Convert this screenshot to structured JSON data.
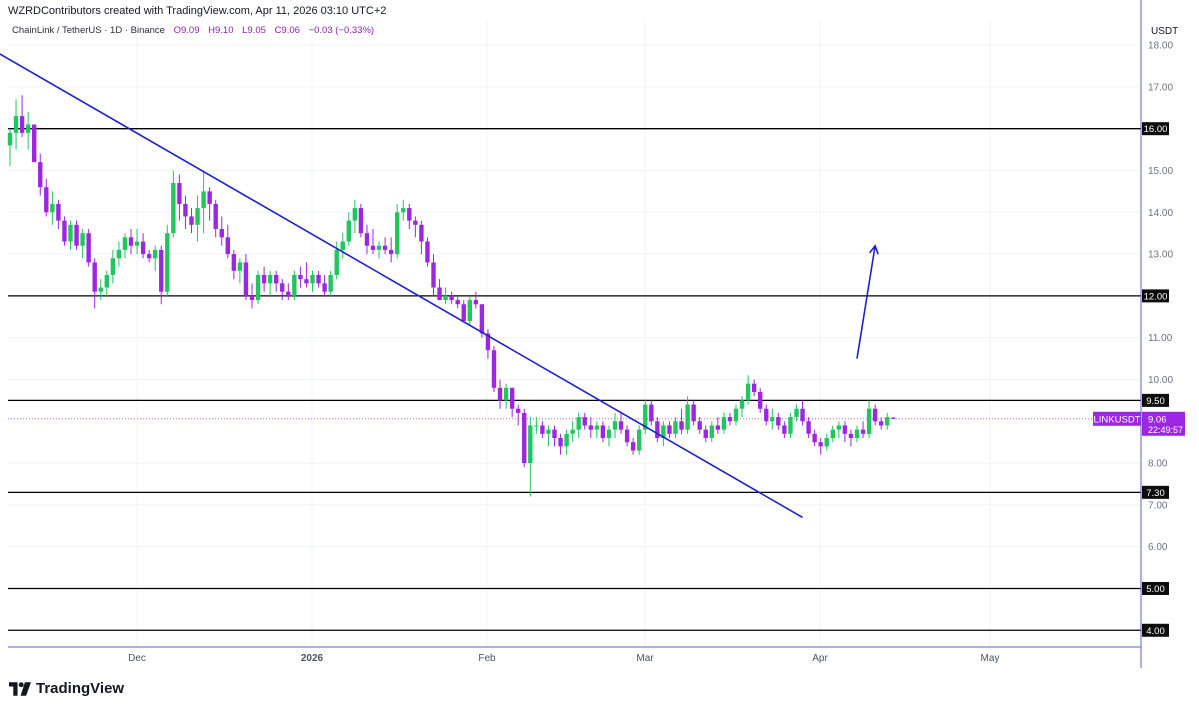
{
  "header": {
    "created_by": "WZRDContributors created with TradingView.com, Apr 11, 2026 03:10 UTC+2"
  },
  "legend": {
    "symbol": "ChainLink / TetherUS · 1D · Binance",
    "open": "O9.09",
    "high": "H9.10",
    "low": "L9.05",
    "close": "C9.06",
    "change": "−0.03 (−0.33%)"
  },
  "axis": {
    "unit": "USDT"
  },
  "branding": {
    "name": "TradingView"
  },
  "chart_data": {
    "type": "candlestick",
    "symbol": "LINKUSDT",
    "interval": "1D",
    "y_axis": {
      "ticks": [
        "18.00",
        "17.00",
        "15.00",
        "14.00",
        "13.00",
        "11.00",
        "10.00",
        "8.00",
        "7.00",
        "6.00"
      ],
      "range": [
        3.6,
        18.6
      ]
    },
    "x_axis": {
      "ticks": [
        "Dec",
        "2026",
        "Feb",
        "Mar",
        "Apr",
        "May"
      ]
    },
    "levels": [
      {
        "price": 16.0,
        "label": "16.00"
      },
      {
        "price": 12.0,
        "label": "12.00"
      },
      {
        "price": 9.5,
        "label": "9.50"
      },
      {
        "price": 7.3,
        "label": "7.30"
      },
      {
        "price": 5.0,
        "label": "5.00"
      },
      {
        "price": 4.0,
        "label": "4.00"
      }
    ],
    "last_price": {
      "symbol": "LINKUSDT",
      "price": "9.06",
      "countdown": "22:49:57",
      "value": 9.06
    },
    "candles": [
      [
        15.6,
        16.0,
        15.1,
        15.9
      ],
      [
        15.9,
        16.7,
        15.5,
        16.3
      ],
      [
        16.3,
        16.8,
        15.8,
        15.9
      ],
      [
        15.9,
        16.4,
        15.5,
        16.1
      ],
      [
        16.1,
        16.1,
        15.2,
        15.2
      ],
      [
        15.2,
        15.4,
        14.4,
        14.6
      ],
      [
        14.6,
        14.8,
        13.9,
        14.0
      ],
      [
        14.0,
        14.5,
        13.7,
        14.2
      ],
      [
        14.2,
        14.3,
        13.6,
        13.8
      ],
      [
        13.8,
        13.9,
        13.2,
        13.3
      ],
      [
        13.3,
        13.8,
        13.1,
        13.7
      ],
      [
        13.7,
        13.8,
        13.1,
        13.2
      ],
      [
        13.2,
        13.6,
        12.9,
        13.5
      ],
      [
        13.5,
        13.6,
        12.7,
        12.8
      ],
      [
        12.8,
        12.9,
        11.7,
        12.1
      ],
      [
        12.1,
        12.4,
        11.9,
        12.2
      ],
      [
        12.2,
        12.6,
        12.0,
        12.5
      ],
      [
        12.5,
        13.1,
        12.3,
        12.9
      ],
      [
        12.9,
        13.3,
        12.7,
        13.1
      ],
      [
        13.1,
        13.5,
        12.9,
        13.4
      ],
      [
        13.4,
        13.6,
        13.0,
        13.2
      ],
      [
        13.2,
        13.6,
        13.0,
        13.3
      ],
      [
        13.3,
        13.5,
        12.9,
        13.0
      ],
      [
        13.0,
        13.1,
        12.8,
        12.9
      ],
      [
        12.9,
        13.2,
        12.6,
        13.1
      ],
      [
        13.1,
        13.2,
        11.8,
        12.1
      ],
      [
        12.1,
        13.7,
        12.0,
        13.5
      ],
      [
        13.5,
        15.0,
        13.4,
        14.7
      ],
      [
        14.7,
        14.9,
        13.8,
        14.2
      ],
      [
        14.2,
        14.4,
        13.6,
        13.9
      ],
      [
        13.9,
        14.1,
        13.5,
        13.7
      ],
      [
        13.7,
        14.4,
        13.3,
        14.1
      ],
      [
        14.1,
        15.0,
        13.5,
        14.5
      ],
      [
        14.5,
        14.6,
        13.8,
        14.2
      ],
      [
        14.2,
        14.3,
        13.4,
        13.6
      ],
      [
        13.6,
        13.9,
        13.2,
        13.4
      ],
      [
        13.4,
        13.7,
        12.9,
        13.0
      ],
      [
        13.0,
        13.1,
        12.4,
        12.6
      ],
      [
        12.6,
        12.9,
        12.3,
        12.8
      ],
      [
        12.8,
        13.0,
        11.9,
        12.0
      ],
      [
        12.0,
        12.3,
        11.7,
        11.9
      ],
      [
        11.9,
        12.6,
        11.8,
        12.5
      ],
      [
        12.5,
        12.7,
        12.1,
        12.3
      ],
      [
        12.3,
        12.6,
        12.0,
        12.5
      ],
      [
        12.5,
        12.6,
        12.1,
        12.3
      ],
      [
        12.3,
        12.4,
        11.9,
        12.1
      ],
      [
        12.1,
        12.3,
        11.9,
        12.0
      ],
      [
        12.0,
        12.6,
        11.9,
        12.5
      ],
      [
        12.5,
        12.7,
        12.2,
        12.4
      ],
      [
        12.4,
        12.8,
        12.2,
        12.3
      ],
      [
        12.3,
        12.6,
        12.1,
        12.5
      ],
      [
        12.5,
        12.6,
        12.2,
        12.3
      ],
      [
        12.3,
        12.5,
        12.0,
        12.1
      ],
      [
        12.1,
        12.6,
        12.0,
        12.5
      ],
      [
        12.5,
        13.3,
        12.4,
        13.1
      ],
      [
        13.1,
        13.5,
        12.9,
        13.3
      ],
      [
        13.3,
        14.0,
        13.2,
        13.8
      ],
      [
        13.8,
        14.3,
        13.5,
        14.1
      ],
      [
        14.1,
        14.2,
        13.4,
        13.5
      ],
      [
        13.5,
        13.7,
        13.0,
        13.2
      ],
      [
        13.2,
        13.6,
        13.0,
        13.1
      ],
      [
        13.1,
        13.3,
        12.9,
        13.2
      ],
      [
        13.2,
        13.4,
        13.0,
        13.1
      ],
      [
        13.1,
        13.4,
        12.8,
        13.0
      ],
      [
        13.0,
        14.2,
        12.9,
        14.0
      ],
      [
        14.0,
        14.3,
        13.8,
        14.1
      ],
      [
        14.1,
        14.2,
        13.6,
        13.8
      ],
      [
        13.8,
        13.9,
        13.4,
        13.7
      ],
      [
        13.7,
        13.8,
        13.0,
        13.3
      ],
      [
        13.3,
        13.4,
        12.7,
        12.8
      ],
      [
        12.8,
        13.0,
        12.0,
        12.2
      ],
      [
        12.2,
        12.4,
        11.9,
        11.9
      ],
      [
        11.9,
        12.2,
        11.8,
        12.0
      ],
      [
        12.0,
        12.1,
        11.8,
        11.9
      ],
      [
        11.9,
        12.0,
        11.7,
        11.8
      ],
      [
        11.8,
        11.9,
        11.4,
        11.4
      ],
      [
        11.4,
        12.0,
        11.3,
        11.9
      ],
      [
        11.9,
        12.1,
        11.7,
        11.8
      ],
      [
        11.8,
        11.8,
        11.0,
        11.1
      ],
      [
        11.1,
        11.2,
        10.5,
        10.7
      ],
      [
        10.7,
        10.8,
        9.7,
        9.8
      ],
      [
        9.8,
        10.0,
        9.3,
        9.5
      ],
      [
        9.5,
        9.9,
        9.3,
        9.8
      ],
      [
        9.8,
        9.8,
        9.1,
        9.3
      ],
      [
        9.3,
        9.4,
        8.9,
        9.2
      ],
      [
        9.2,
        9.3,
        7.9,
        8.0
      ],
      [
        8.0,
        9.1,
        7.2,
        8.9
      ],
      [
        8.9,
        9.1,
        8.7,
        8.9
      ],
      [
        8.9,
        9.0,
        8.6,
        8.7
      ],
      [
        8.7,
        8.9,
        8.4,
        8.8
      ],
      [
        8.8,
        8.9,
        8.4,
        8.6
      ],
      [
        8.6,
        8.7,
        8.2,
        8.4
      ],
      [
        8.4,
        8.8,
        8.2,
        8.7
      ],
      [
        8.7,
        9.0,
        8.5,
        8.8
      ],
      [
        8.8,
        9.2,
        8.6,
        9.1
      ],
      [
        9.1,
        9.2,
        8.8,
        8.9
      ],
      [
        8.9,
        9.1,
        8.6,
        8.8
      ],
      [
        8.8,
        9.0,
        8.6,
        8.9
      ],
      [
        8.9,
        9.0,
        8.5,
        8.6
      ],
      [
        8.6,
        8.9,
        8.4,
        8.8
      ],
      [
        8.8,
        9.2,
        8.6,
        9.0
      ],
      [
        9.0,
        9.2,
        8.7,
        8.8
      ],
      [
        8.8,
        8.9,
        8.4,
        8.5
      ],
      [
        8.5,
        8.6,
        8.2,
        8.3
      ],
      [
        8.3,
        8.9,
        8.2,
        8.8
      ],
      [
        8.8,
        9.5,
        8.7,
        9.4
      ],
      [
        9.4,
        9.5,
        8.9,
        9.0
      ],
      [
        9.0,
        9.1,
        8.5,
        8.6
      ],
      [
        8.6,
        9.0,
        8.4,
        8.9
      ],
      [
        8.9,
        9.0,
        8.6,
        8.7
      ],
      [
        8.7,
        9.1,
        8.6,
        9.0
      ],
      [
        9.0,
        9.3,
        8.7,
        8.8
      ],
      [
        8.8,
        9.6,
        8.7,
        9.4
      ],
      [
        9.4,
        9.5,
        8.9,
        9.0
      ],
      [
        9.0,
        9.1,
        8.7,
        8.8
      ],
      [
        8.8,
        8.9,
        8.5,
        8.6
      ],
      [
        8.6,
        9.0,
        8.5,
        8.9
      ],
      [
        8.9,
        9.1,
        8.7,
        8.8
      ],
      [
        8.8,
        9.2,
        8.7,
        9.1
      ],
      [
        9.1,
        9.2,
        8.9,
        9.0
      ],
      [
        9.0,
        9.4,
        8.9,
        9.3
      ],
      [
        9.3,
        9.6,
        9.1,
        9.5
      ],
      [
        9.5,
        10.1,
        9.4,
        9.9
      ],
      [
        9.9,
        10.0,
        9.6,
        9.7
      ],
      [
        9.7,
        9.8,
        9.2,
        9.3
      ],
      [
        9.3,
        9.4,
        8.9,
        9.0
      ],
      [
        9.0,
        9.3,
        8.8,
        9.1
      ],
      [
        9.1,
        9.2,
        8.8,
        8.9
      ],
      [
        8.9,
        9.0,
        8.6,
        8.7
      ],
      [
        8.7,
        9.2,
        8.6,
        9.1
      ],
      [
        9.1,
        9.4,
        9.0,
        9.3
      ],
      [
        9.3,
        9.5,
        8.9,
        9.0
      ],
      [
        9.0,
        9.1,
        8.6,
        8.7
      ],
      [
        8.7,
        8.8,
        8.4,
        8.5
      ],
      [
        8.5,
        8.6,
        8.2,
        8.4
      ],
      [
        8.4,
        8.7,
        8.3,
        8.6
      ],
      [
        8.6,
        8.9,
        8.5,
        8.8
      ],
      [
        8.8,
        9.0,
        8.6,
        8.9
      ],
      [
        8.9,
        9.0,
        8.5,
        8.7
      ],
      [
        8.7,
        8.8,
        8.4,
        8.6
      ],
      [
        8.6,
        8.9,
        8.5,
        8.8
      ],
      [
        8.8,
        9.0,
        8.6,
        8.7
      ],
      [
        8.7,
        9.5,
        8.6,
        9.3
      ],
      [
        9.3,
        9.4,
        8.9,
        9.0
      ],
      [
        9.0,
        9.1,
        8.8,
        8.9
      ],
      [
        8.9,
        9.2,
        8.8,
        9.1
      ],
      [
        9.09,
        9.1,
        9.05,
        9.06
      ]
    ],
    "annotations": {
      "trendline": {
        "from": [
          -15,
          18.9
        ],
        "to": [
          131,
          6.7
        ]
      },
      "arrow": {
        "from": [
          140,
          10.5
        ],
        "to": [
          143,
          13.2
        ]
      }
    }
  }
}
